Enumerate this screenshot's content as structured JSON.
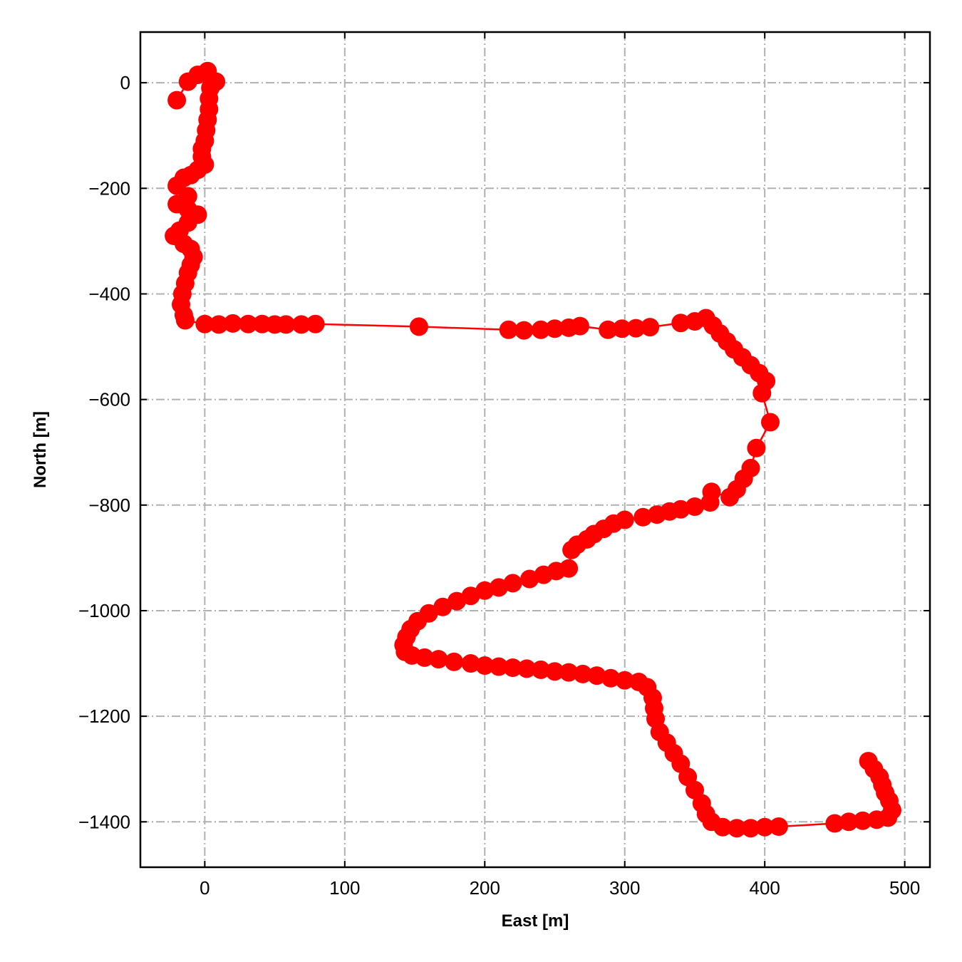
{
  "chart_data": {
    "type": "line",
    "title": "",
    "xlabel": "East [m]",
    "ylabel": "North [m]",
    "xlim": [
      -46,
      518
    ],
    "ylim": [
      -1486,
      96
    ],
    "xticks": [
      0,
      100,
      200,
      300,
      400,
      500
    ],
    "yticks": [
      0,
      -200,
      -400,
      -600,
      -800,
      -1000,
      -1200,
      -1400
    ],
    "xtick_labels": [
      "0",
      "100",
      "200",
      "300",
      "400",
      "500"
    ],
    "ytick_labels": [
      "0",
      "−200",
      "−400",
      "−600",
      "−800",
      "−1000",
      "−1200",
      "−1400"
    ],
    "grid": true,
    "series": [
      {
        "color": "#ff0000",
        "marker": "circle",
        "points": [
          [
            -20,
            -33
          ],
          [
            -12,
            2
          ],
          [
            -5,
            15
          ],
          [
            2,
            22
          ],
          [
            8,
            2
          ],
          [
            4,
            -10
          ],
          [
            3,
            -30
          ],
          [
            3,
            -50
          ],
          [
            2,
            -70
          ],
          [
            1,
            -90
          ],
          [
            0,
            -110
          ],
          [
            -2,
            -125
          ],
          [
            -2,
            -140
          ],
          [
            0,
            -155
          ],
          [
            -5,
            -165
          ],
          [
            -10,
            -175
          ],
          [
            -15,
            -180
          ],
          [
            -20,
            -195
          ],
          [
            -12,
            -215
          ],
          [
            -20,
            -230
          ],
          [
            -12,
            -240
          ],
          [
            -5,
            -250
          ],
          [
            -12,
            -265
          ],
          [
            -18,
            -280
          ],
          [
            -22,
            -290
          ],
          [
            -15,
            -305
          ],
          [
            -10,
            -315
          ],
          [
            -8,
            -330
          ],
          [
            -10,
            -345
          ],
          [
            -12,
            -360
          ],
          [
            -14,
            -380
          ],
          [
            -16,
            -400
          ],
          [
            -17,
            -420
          ],
          [
            -15,
            -440
          ],
          [
            -14,
            -450
          ],
          [
            0,
            -457
          ],
          [
            10,
            -458
          ],
          [
            20,
            -456
          ],
          [
            31,
            -457
          ],
          [
            41,
            -457
          ],
          [
            50,
            -458
          ],
          [
            58,
            -458
          ],
          [
            69,
            -458
          ],
          [
            79,
            -457
          ],
          [
            153,
            -462
          ],
          [
            217,
            -468
          ],
          [
            228,
            -469
          ],
          [
            240,
            -468
          ],
          [
            250,
            -466
          ],
          [
            260,
            -464
          ],
          [
            268,
            -461
          ],
          [
            288,
            -468
          ],
          [
            298,
            -466
          ],
          [
            308,
            -465
          ],
          [
            318,
            -463
          ],
          [
            340,
            -455
          ],
          [
            350,
            -452
          ],
          [
            358,
            -446
          ],
          [
            363,
            -460
          ],
          [
            368,
            -475
          ],
          [
            373,
            -490
          ],
          [
            378,
            -505
          ],
          [
            384,
            -520
          ],
          [
            390,
            -535
          ],
          [
            396,
            -550
          ],
          [
            401,
            -565
          ],
          [
            398,
            -588
          ],
          [
            404,
            -643
          ],
          [
            394,
            -692
          ],
          [
            390,
            -730
          ],
          [
            385,
            -750
          ],
          [
            380,
            -770
          ],
          [
            375,
            -785
          ],
          [
            362,
            -775
          ],
          [
            361,
            -795
          ],
          [
            350,
            -803
          ],
          [
            340,
            -808
          ],
          [
            332,
            -812
          ],
          [
            323,
            -818
          ],
          [
            313,
            -823
          ],
          [
            300,
            -828
          ],
          [
            292,
            -835
          ],
          [
            285,
            -845
          ],
          [
            278,
            -855
          ],
          [
            273,
            -865
          ],
          [
            266,
            -875
          ],
          [
            262,
            -885
          ],
          [
            260,
            -920
          ],
          [
            251,
            -925
          ],
          [
            242,
            -932
          ],
          [
            232,
            -940
          ],
          [
            220,
            -948
          ],
          [
            210,
            -956
          ],
          [
            200,
            -962
          ],
          [
            190,
            -972
          ],
          [
            180,
            -982
          ],
          [
            170,
            -993
          ],
          [
            160,
            -1005
          ],
          [
            152,
            -1020
          ],
          [
            147,
            -1035
          ],
          [
            144,
            -1050
          ],
          [
            142,
            -1065
          ],
          [
            143,
            -1078
          ],
          [
            148,
            -1085
          ],
          [
            157,
            -1089
          ],
          [
            167,
            -1092
          ],
          [
            178,
            -1097
          ],
          [
            190,
            -1100
          ],
          [
            200,
            -1104
          ],
          [
            210,
            -1106
          ],
          [
            220,
            -1108
          ],
          [
            230,
            -1110
          ],
          [
            240,
            -1112
          ],
          [
            250,
            -1115
          ],
          [
            260,
            -1117
          ],
          [
            270,
            -1120
          ],
          [
            280,
            -1123
          ],
          [
            290,
            -1128
          ],
          [
            300,
            -1132
          ],
          [
            310,
            -1135
          ],
          [
            316,
            -1145
          ],
          [
            320,
            -1165
          ],
          [
            321,
            -1185
          ],
          [
            322,
            -1205
          ],
          [
            325,
            -1230
          ],
          [
            330,
            -1250
          ],
          [
            335,
            -1270
          ],
          [
            340,
            -1290
          ],
          [
            345,
            -1315
          ],
          [
            350,
            -1340
          ],
          [
            355,
            -1365
          ],
          [
            358,
            -1385
          ],
          [
            362,
            -1400
          ],
          [
            370,
            -1410
          ],
          [
            380,
            -1412
          ],
          [
            390,
            -1412
          ],
          [
            400,
            -1410
          ],
          [
            410,
            -1409
          ],
          [
            450,
            -1403
          ],
          [
            460,
            -1400
          ],
          [
            470,
            -1398
          ],
          [
            480,
            -1396
          ],
          [
            488,
            -1392
          ],
          [
            491,
            -1378
          ],
          [
            489,
            -1360
          ],
          [
            486,
            -1345
          ],
          [
            484,
            -1330
          ],
          [
            482,
            -1315
          ],
          [
            478,
            -1300
          ],
          [
            474,
            -1285
          ]
        ]
      }
    ]
  }
}
